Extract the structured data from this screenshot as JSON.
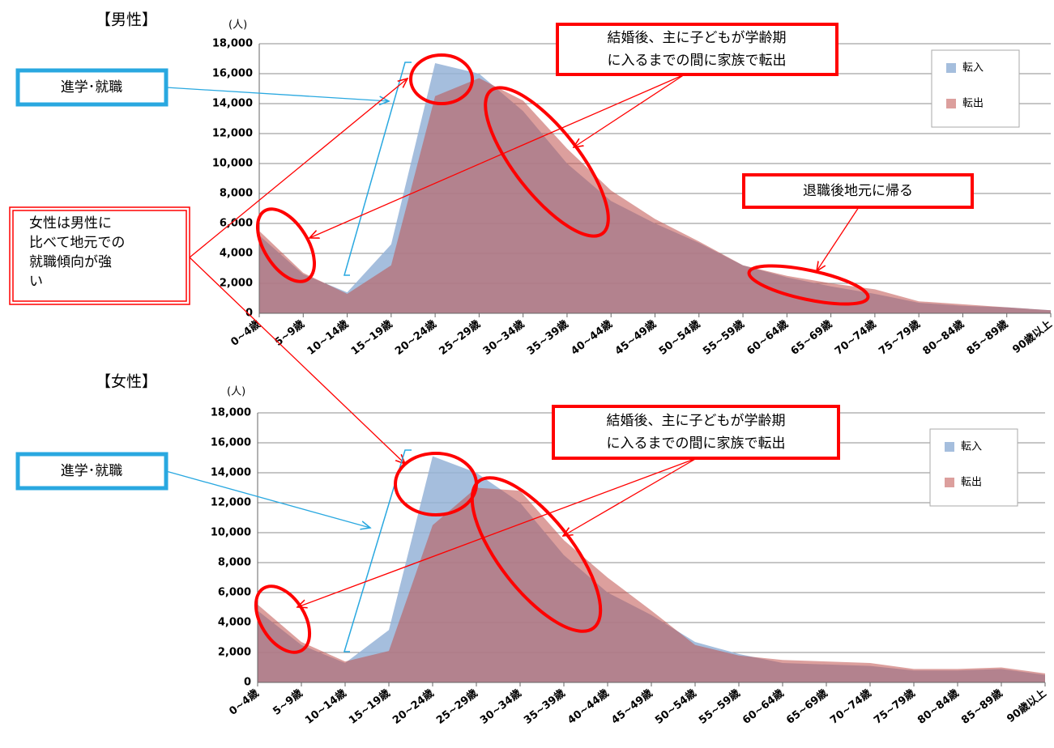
{
  "chart_data": [
    {
      "type": "area",
      "title": "【男性】",
      "y_label": "(人)",
      "categories": [
        "0~4歳",
        "5~9歳",
        "10~14歳",
        "15~19歳",
        "20~24歳",
        "25~29歳",
        "30~34歳",
        "35~39歳",
        "40~44歳",
        "45~49歳",
        "50~54歳",
        "55~59歳",
        "60~64歳",
        "65~69歳",
        "70~74歳",
        "75~79歳",
        "80~84歳",
        "85~89歳",
        "90歳以上"
      ],
      "series": [
        {
          "name": "転入",
          "color": "#95b3d7",
          "values": [
            5200,
            2600,
            1400,
            4600,
            16700,
            16000,
            13500,
            10000,
            7500,
            6000,
            4700,
            3200,
            2400,
            1800,
            1300,
            700,
            500,
            400,
            200
          ]
        },
        {
          "name": "転出",
          "color": "#c0504d",
          "values": [
            5500,
            2700,
            1300,
            3200,
            14500,
            15700,
            14200,
            11000,
            8200,
            6300,
            4800,
            3200,
            2500,
            2000,
            1600,
            800,
            600,
            400,
            200
          ]
        }
      ],
      "ylim": [
        0,
        18000
      ],
      "yticks": [
        0,
        {
          "value": 2000,
          "label": "2,000"
        },
        {
          "value": 4000,
          "label": "4,000"
        },
        {
          "value": 6000,
          "label": "6,000"
        },
        {
          "value": 8000,
          "label": "8,000"
        },
        {
          "value": 10000,
          "label": "10,000"
        },
        {
          "value": 12000,
          "label": "12,000"
        },
        {
          "value": 14000,
          "label": "14,000"
        },
        {
          "value": 16000,
          "label": "16,000"
        },
        {
          "value": 18000,
          "label": "18,000"
        }
      ],
      "grid": true,
      "legend": "upper right",
      "annotations": {
        "study": "進学･就職",
        "family": [
          "結婚後、主に子どもが学齢期",
          "に入るまでの間に家族で転出"
        ],
        "retire": "退職後地元に帰る"
      }
    },
    {
      "type": "area",
      "title": "【女性】",
      "y_label": "(人)",
      "categories": [
        "0~4歳",
        "5~9歳",
        "10~14歳",
        "15~19歳",
        "20~24歳",
        "25~29歳",
        "30~34歳",
        "35~39歳",
        "40~44歳",
        "45~49歳",
        "50~54歳",
        "55~59歳",
        "60~64歳",
        "65~69歳",
        "70~74歳",
        "75~79歳",
        "80~84歳",
        "85~89歳",
        "90歳以上"
      ],
      "series": [
        {
          "name": "転入",
          "color": "#95b3d7",
          "values": [
            4800,
            2500,
            1300,
            3500,
            15100,
            14000,
            12000,
            8500,
            6000,
            4500,
            2700,
            1900,
            1300,
            1200,
            1100,
            800,
            800,
            900,
            500
          ]
        },
        {
          "name": "転出",
          "color": "#c0504d",
          "values": [
            5200,
            2700,
            1400,
            2100,
            10500,
            13000,
            12800,
            9500,
            7000,
            4800,
            2500,
            1800,
            1500,
            1400,
            1300,
            900,
            900,
            1000,
            600
          ]
        }
      ],
      "ylim": [
        0,
        18000
      ],
      "yticks": [
        0,
        {
          "value": 2000,
          "label": "2,000"
        },
        {
          "value": 4000,
          "label": "4,000"
        },
        {
          "value": 6000,
          "label": "6,000"
        },
        {
          "value": 8000,
          "label": "8,000"
        },
        {
          "value": 10000,
          "label": "10,000"
        },
        {
          "value": 12000,
          "label": "12,000"
        },
        {
          "value": 14000,
          "label": "14,000"
        },
        {
          "value": 16000,
          "label": "16,000"
        },
        {
          "value": 18000,
          "label": "18,000"
        }
      ],
      "grid": true,
      "legend": "upper right",
      "annotations": {
        "study": "進学･就職",
        "family": [
          "結婚後、主に子どもが学齢期",
          "に入るまでの間に家族で転出"
        ]
      }
    }
  ],
  "callout": [
    "女性は男性に",
    "比べて地元での",
    "就職傾向が強",
    "い"
  ]
}
